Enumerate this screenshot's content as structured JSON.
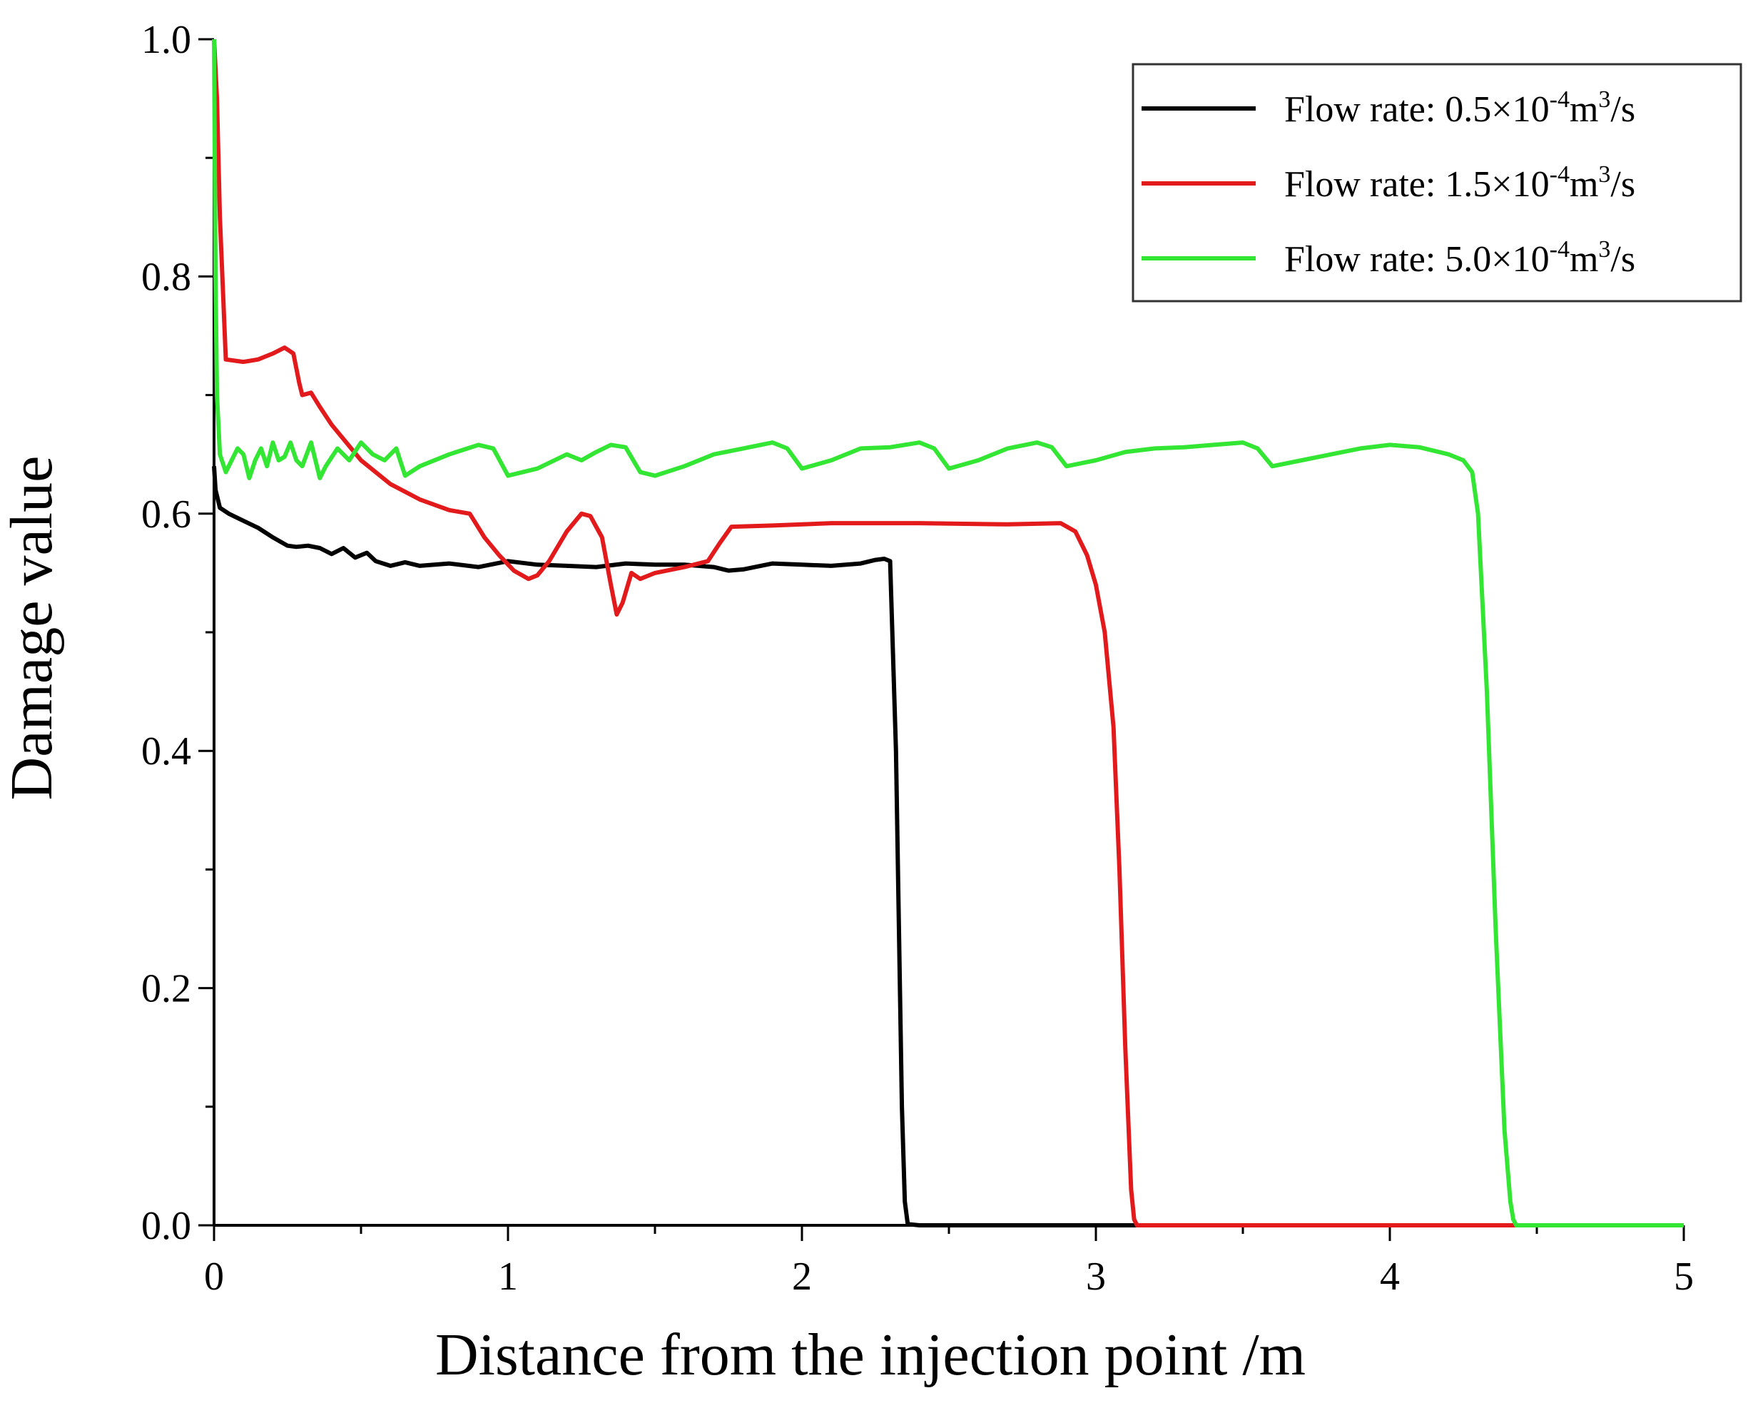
{
  "chart_data": {
    "type": "line",
    "title": "",
    "xlabel": "Distance from the injection point /m",
    "ylabel": "Damage value",
    "xlim": [
      0,
      5
    ],
    "ylim": [
      0,
      1.0
    ],
    "xticks": [
      "0",
      "1",
      "2",
      "3",
      "4",
      "5"
    ],
    "yticks": [
      "0.0",
      "0.2",
      "0.4",
      "0.6",
      "0.8",
      "1.0"
    ],
    "grid": false,
    "legend_position": "top-right",
    "series": [
      {
        "name": "Flow rate: 0.5×10-4m3/s",
        "legend": {
          "prefix": "Flow rate: 0.5×10",
          "exp": "-4",
          "unit": "m",
          "unit_exp": "3",
          "suffix": "/s"
        },
        "color": "#000000",
        "x": [
          0,
          0.005,
          0.02,
          0.05,
          0.1,
          0.15,
          0.2,
          0.25,
          0.28,
          0.32,
          0.36,
          0.4,
          0.44,
          0.48,
          0.52,
          0.55,
          0.6,
          0.65,
          0.7,
          0.8,
          0.9,
          1.0,
          1.1,
          1.2,
          1.3,
          1.4,
          1.5,
          1.6,
          1.7,
          1.75,
          1.8,
          1.9,
          2.0,
          2.1,
          2.2,
          2.25,
          2.28,
          2.3,
          2.32,
          2.34,
          2.35,
          2.36,
          2.4,
          3.0,
          3.2
        ],
        "y": [
          0.64,
          0.62,
          0.605,
          0.6,
          0.594,
          0.588,
          0.58,
          0.573,
          0.572,
          0.573,
          0.571,
          0.566,
          0.571,
          0.563,
          0.567,
          0.56,
          0.556,
          0.559,
          0.556,
          0.558,
          0.555,
          0.56,
          0.557,
          0.556,
          0.555,
          0.558,
          0.557,
          0.557,
          0.555,
          0.552,
          0.553,
          0.558,
          0.557,
          0.556,
          0.558,
          0.561,
          0.562,
          0.56,
          0.4,
          0.1,
          0.02,
          0.001,
          0.0,
          0.0,
          0.0
        ]
      },
      {
        "name": "Flow rate: 1.5×10-4m3/s",
        "legend": {
          "prefix": "Flow rate: 1.5×10",
          "exp": "-4",
          "unit": "m",
          "unit_exp": "3",
          "suffix": "/s"
        },
        "color": "#e31a1c",
        "x": [
          0,
          0.01,
          0.02,
          0.04,
          0.1,
          0.15,
          0.2,
          0.24,
          0.27,
          0.29,
          0.3,
          0.33,
          0.36,
          0.4,
          0.5,
          0.6,
          0.7,
          0.8,
          0.87,
          0.92,
          0.97,
          1.02,
          1.07,
          1.1,
          1.14,
          1.2,
          1.25,
          1.28,
          1.32,
          1.35,
          1.37,
          1.39,
          1.42,
          1.45,
          1.5,
          1.6,
          1.68,
          1.72,
          1.76,
          1.9,
          2.1,
          2.4,
          2.7,
          2.88,
          2.93,
          2.97,
          3.0,
          3.03,
          3.06,
          3.08,
          3.1,
          3.12,
          3.13,
          3.14,
          3.2,
          4.0,
          4.55
        ],
        "y": [
          1.0,
          0.95,
          0.85,
          0.73,
          0.728,
          0.73,
          0.735,
          0.74,
          0.735,
          0.71,
          0.7,
          0.702,
          0.69,
          0.675,
          0.645,
          0.625,
          0.612,
          0.603,
          0.6,
          0.58,
          0.565,
          0.552,
          0.545,
          0.548,
          0.56,
          0.585,
          0.6,
          0.598,
          0.58,
          0.54,
          0.515,
          0.525,
          0.55,
          0.545,
          0.55,
          0.555,
          0.56,
          0.575,
          0.589,
          0.59,
          0.592,
          0.592,
          0.591,
          0.592,
          0.585,
          0.565,
          0.54,
          0.5,
          0.42,
          0.3,
          0.15,
          0.03,
          0.005,
          0.0,
          0.0,
          0.0,
          0.0
        ]
      },
      {
        "name": "Flow rate: 5.0×10-4m3/s",
        "legend": {
          "prefix": "Flow rate: 5.0×10",
          "exp": "-4",
          "unit": "m",
          "unit_exp": "3",
          "suffix": "/s"
        },
        "color": "#33e633",
        "x": [
          0,
          0.005,
          0.01,
          0.02,
          0.04,
          0.06,
          0.08,
          0.1,
          0.12,
          0.14,
          0.16,
          0.18,
          0.2,
          0.22,
          0.24,
          0.26,
          0.28,
          0.3,
          0.33,
          0.36,
          0.38,
          0.42,
          0.46,
          0.5,
          0.54,
          0.58,
          0.62,
          0.65,
          0.7,
          0.8,
          0.9,
          0.95,
          1.0,
          1.1,
          1.2,
          1.25,
          1.3,
          1.35,
          1.4,
          1.45,
          1.5,
          1.6,
          1.7,
          1.8,
          1.9,
          1.95,
          2.0,
          2.1,
          2.2,
          2.3,
          2.4,
          2.45,
          2.5,
          2.6,
          2.7,
          2.8,
          2.85,
          2.9,
          3.0,
          3.1,
          3.2,
          3.3,
          3.4,
          3.5,
          3.55,
          3.6,
          3.7,
          3.8,
          3.9,
          4.0,
          4.1,
          4.2,
          4.25,
          4.28,
          4.3,
          4.33,
          4.36,
          4.39,
          4.41,
          4.42,
          4.43,
          4.45,
          5.0
        ],
        "y": [
          1.0,
          0.8,
          0.7,
          0.65,
          0.635,
          0.645,
          0.655,
          0.65,
          0.63,
          0.645,
          0.655,
          0.64,
          0.66,
          0.645,
          0.648,
          0.66,
          0.645,
          0.64,
          0.66,
          0.63,
          0.64,
          0.655,
          0.645,
          0.66,
          0.65,
          0.645,
          0.655,
          0.632,
          0.64,
          0.65,
          0.658,
          0.655,
          0.632,
          0.638,
          0.65,
          0.645,
          0.652,
          0.658,
          0.656,
          0.635,
          0.632,
          0.64,
          0.65,
          0.655,
          0.66,
          0.655,
          0.638,
          0.645,
          0.655,
          0.656,
          0.66,
          0.655,
          0.638,
          0.645,
          0.655,
          0.66,
          0.656,
          0.64,
          0.645,
          0.652,
          0.655,
          0.656,
          0.658,
          0.66,
          0.655,
          0.64,
          0.645,
          0.65,
          0.655,
          0.658,
          0.656,
          0.65,
          0.645,
          0.635,
          0.6,
          0.45,
          0.25,
          0.08,
          0.02,
          0.005,
          0.0,
          0.0,
          0.0
        ]
      }
    ]
  }
}
